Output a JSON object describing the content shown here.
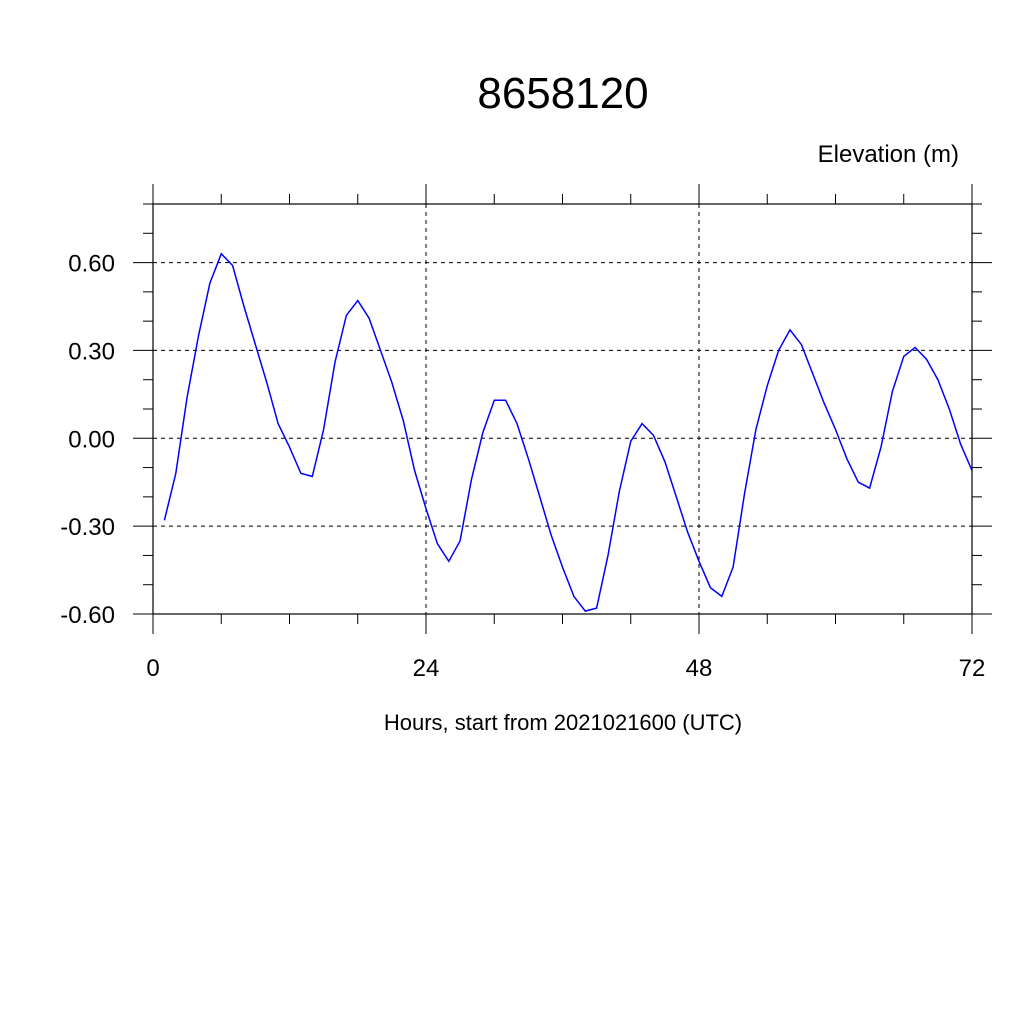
{
  "chart_data": {
    "type": "line",
    "title": "8658120",
    "unit_label": "Elevation (m)",
    "xlabel": "Hours, start from 2021021600 (UTC)",
    "xlim": [
      0,
      72
    ],
    "ylim": [
      -0.6,
      0.8
    ],
    "x_ticks": [
      0,
      24,
      48,
      72
    ],
    "x_tick_labels": [
      "0",
      "24",
      "48",
      "72"
    ],
    "y_ticks": [
      0.6,
      0.3,
      0.0,
      -0.3,
      -0.6
    ],
    "y_tick_labels": [
      "0.60",
      "0.30",
      "0.00",
      "-0.30",
      "-0.60"
    ],
    "grid": true,
    "series": [
      {
        "color": "#0000ff",
        "x": [
          1,
          2,
          3,
          4,
          5,
          6,
          7,
          8,
          9,
          10,
          11,
          12,
          13,
          14,
          15,
          16,
          17,
          18,
          19,
          20,
          21,
          22,
          23,
          24,
          25,
          26,
          27,
          28,
          29,
          30,
          31,
          32,
          33,
          34,
          35,
          36,
          37,
          38,
          39,
          40,
          41,
          42,
          43,
          44,
          45,
          46,
          47,
          48,
          49,
          50,
          51,
          52,
          53,
          54,
          55,
          56,
          57,
          58,
          59,
          60,
          61,
          62,
          63,
          64,
          65,
          66,
          67,
          68,
          69,
          70,
          71,
          72
        ],
        "y": [
          -0.28,
          -0.12,
          0.14,
          0.35,
          0.53,
          0.63,
          0.59,
          0.45,
          0.32,
          0.19,
          0.05,
          -0.03,
          -0.12,
          -0.13,
          0.03,
          0.26,
          0.42,
          0.47,
          0.41,
          0.3,
          0.19,
          0.06,
          -0.11,
          -0.24,
          -0.36,
          -0.42,
          -0.35,
          -0.14,
          0.02,
          0.13,
          0.13,
          0.05,
          -0.07,
          -0.2,
          -0.33,
          -0.44,
          -0.54,
          -0.59,
          -0.58,
          -0.4,
          -0.18,
          -0.01,
          0.05,
          0.01,
          -0.08,
          -0.2,
          -0.32,
          -0.42,
          -0.51,
          -0.54,
          -0.44,
          -0.19,
          0.03,
          0.18,
          0.3,
          0.37,
          0.32,
          0.22,
          0.12,
          0.03,
          -0.07,
          -0.15,
          -0.17,
          -0.03,
          0.16,
          0.28,
          0.31,
          0.27,
          0.2,
          0.1,
          -0.02,
          -0.11
        ]
      }
    ]
  }
}
